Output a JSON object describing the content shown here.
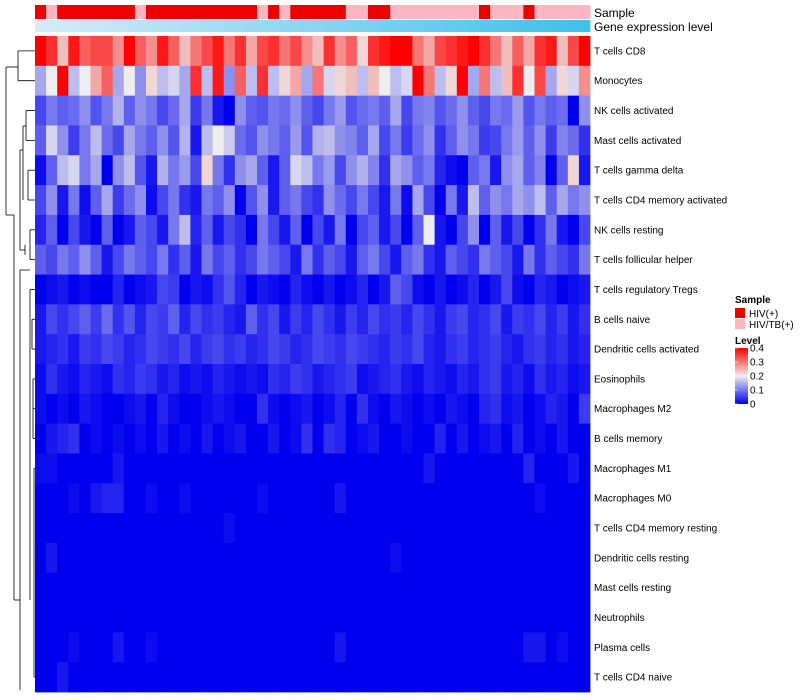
{
  "chart_data": {
    "type": "heatmap",
    "n_samples": 50,
    "annotation_rows": [
      "Sample",
      "Gene expression level"
    ],
    "sample_groups": [
      "HIV(+)",
      "HIV/TB(+)",
      "HIV(+)",
      "HIV(+)",
      "HIV(+)",
      "HIV(+)",
      "HIV(+)",
      "HIV(+)",
      "HIV(+)",
      "HIV/TB(+)",
      "HIV(+)",
      "HIV(+)",
      "HIV(+)",
      "HIV(+)",
      "HIV(+)",
      "HIV(+)",
      "HIV(+)",
      "HIV(+)",
      "HIV(+)",
      "HIV(+)",
      "HIV/TB(+)",
      "HIV(+)",
      "HIV/TB(+)",
      "HIV(+)",
      "HIV(+)",
      "HIV(+)",
      "HIV(+)",
      "HIV(+)",
      "HIV/TB(+)",
      "HIV/TB(+)",
      "HIV(+)",
      "HIV(+)",
      "HIV/TB(+)",
      "HIV/TB(+)",
      "HIV/TB(+)",
      "HIV/TB(+)",
      "HIV/TB(+)",
      "HIV/TB(+)",
      "HIV/TB(+)",
      "HIV/TB(+)",
      "HIV(+)",
      "HIV/TB(+)",
      "HIV/TB(+)",
      "HIV/TB(+)",
      "HIV(+)",
      "HIV/TB(+)",
      "HIV/TB(+)",
      "HIV/TB(+)",
      "HIV/TB(+)",
      "HIV/TB(+)"
    ],
    "row_labels": [
      "T cells CD8",
      "Monocytes",
      "NK cells activated",
      "Mast cells activated",
      "T cells gamma delta",
      "T cells CD4 memory activated",
      "NK cells resting",
      "T cells follicular helper",
      "T cells regulatory  Tregs",
      "B cells naive",
      "Dendritic cells activated",
      "Eosinophils",
      "Macrophages M2",
      "B cells memory",
      "Macrophages M1",
      "Macrophages M0",
      "T cells CD4 memory resting",
      "Dendritic cells resting",
      "Mast cells resting",
      "Neutrophils",
      "Plasma cells",
      "T cells CD4 naive"
    ],
    "values": [
      [
        0.4,
        0.36,
        0.24,
        0.38,
        0.32,
        0.34,
        0.34,
        0.28,
        0.4,
        0.32,
        0.28,
        0.38,
        0.32,
        0.24,
        0.3,
        0.34,
        0.38,
        0.3,
        0.36,
        0.26,
        0.34,
        0.36,
        0.3,
        0.34,
        0.28,
        0.24,
        0.36,
        0.28,
        0.32,
        0.22,
        0.36,
        0.38,
        0.4,
        0.4,
        0.3,
        0.26,
        0.34,
        0.36,
        0.38,
        0.4,
        0.36,
        0.3,
        0.24,
        0.32,
        0.26,
        0.36,
        0.38,
        0.24,
        0.34,
        0.4
      ],
      [
        0.14,
        0.2,
        0.4,
        0.16,
        0.2,
        0.26,
        0.32,
        0.14,
        0.2,
        0.12,
        0.22,
        0.16,
        0.18,
        0.14,
        0.36,
        0.16,
        0.38,
        0.12,
        0.32,
        0.16,
        0.36,
        0.16,
        0.22,
        0.26,
        0.14,
        0.3,
        0.18,
        0.22,
        0.24,
        0.16,
        0.24,
        0.2,
        0.16,
        0.18,
        0.4,
        0.3,
        0.16,
        0.22,
        0.4,
        0.14,
        0.3,
        0.16,
        0.24,
        0.36,
        0.2,
        0.34,
        0.14,
        0.22,
        0.18,
        0.28
      ],
      [
        0.06,
        0.1,
        0.08,
        0.09,
        0.12,
        0.07,
        0.1,
        0.15,
        0.08,
        0.12,
        0.1,
        0.06,
        0.09,
        0.14,
        0.05,
        0.1,
        0.02,
        0.0,
        0.12,
        0.08,
        0.07,
        0.1,
        0.09,
        0.12,
        0.08,
        0.06,
        0.1,
        0.13,
        0.07,
        0.09,
        0.1,
        0.08,
        0.14,
        0.06,
        0.1,
        0.11,
        0.07,
        0.09,
        0.12,
        0.08,
        0.06,
        0.1,
        0.09,
        0.13,
        0.07,
        0.1,
        0.08,
        0.09,
        0.0,
        0.12
      ],
      [
        0.08,
        0.18,
        0.12,
        0.05,
        0.1,
        0.16,
        0.09,
        0.06,
        0.14,
        0.1,
        0.08,
        0.12,
        0.07,
        0.15,
        0.02,
        0.16,
        0.2,
        0.17,
        0.09,
        0.07,
        0.12,
        0.1,
        0.08,
        0.13,
        0.07,
        0.15,
        0.16,
        0.12,
        0.11,
        0.08,
        0.14,
        0.06,
        0.1,
        0.05,
        0.09,
        0.12,
        0.04,
        0.08,
        0.12,
        0.1,
        0.05,
        0.06,
        0.1,
        0.13,
        0.08,
        0.12,
        0.05,
        0.11,
        0.09,
        0.04
      ],
      [
        0.01,
        0.08,
        0.16,
        0.18,
        0.1,
        0.14,
        0.0,
        0.12,
        0.16,
        0.07,
        0.02,
        0.15,
        0.1,
        0.13,
        0.06,
        0.22,
        0.1,
        0.04,
        0.12,
        0.14,
        0.08,
        0.02,
        0.08,
        0.18,
        0.16,
        0.1,
        0.13,
        0.06,
        0.12,
        0.15,
        0.11,
        0.04,
        0.14,
        0.12,
        0.08,
        0.1,
        0.03,
        0.01,
        0.0,
        0.08,
        0.1,
        0.02,
        0.12,
        0.14,
        0.08,
        0.11,
        0.0,
        0.08,
        0.22,
        0.02
      ],
      [
        0.06,
        0.12,
        0.02,
        0.1,
        0.01,
        0.08,
        0.14,
        0.05,
        0.09,
        0.12,
        0.01,
        0.06,
        0.1,
        0.04,
        0.02,
        0.1,
        0.08,
        0.12,
        0.0,
        0.07,
        0.12,
        0.02,
        0.08,
        0.1,
        0.06,
        0.04,
        0.12,
        0.09,
        0.06,
        0.1,
        0.06,
        0.02,
        0.1,
        0.01,
        0.14,
        0.06,
        0.0,
        0.1,
        0.02,
        0.16,
        0.08,
        0.12,
        0.1,
        0.14,
        0.12,
        0.16,
        0.08,
        0.14,
        0.1,
        0.12
      ],
      [
        0.03,
        0.08,
        0.0,
        0.06,
        0.02,
        0.0,
        0.08,
        0.0,
        0.02,
        0.08,
        0.06,
        0.02,
        0.1,
        0.16,
        0.03,
        0.08,
        0.02,
        0.06,
        0.04,
        0.0,
        0.1,
        0.06,
        0.02,
        0.08,
        0.0,
        0.06,
        0.02,
        0.1,
        0.0,
        0.06,
        0.08,
        0.02,
        0.06,
        0.0,
        0.08,
        0.2,
        0.02,
        0.0,
        0.06,
        0.12,
        0.0,
        0.08,
        0.02,
        0.06,
        0.0,
        0.04,
        0.1,
        0.02,
        0.0,
        0.06
      ],
      [
        0.08,
        0.06,
        0.1,
        0.08,
        0.12,
        0.08,
        0.02,
        0.06,
        0.1,
        0.08,
        0.06,
        0.1,
        0.04,
        0.08,
        0.02,
        0.1,
        0.06,
        0.08,
        0.04,
        0.06,
        0.1,
        0.08,
        0.06,
        0.02,
        0.1,
        0.04,
        0.08,
        0.06,
        0.02,
        0.08,
        0.1,
        0.06,
        0.02,
        0.08,
        0.1,
        0.04,
        0.02,
        0.08,
        0.06,
        0.04,
        0.1,
        0.08,
        0.06,
        0.02,
        0.1,
        0.04,
        0.08,
        0.06,
        0.04,
        0.1
      ],
      [
        0.0,
        0.01,
        0.02,
        0.0,
        0.01,
        0.0,
        0.0,
        0.03,
        0.0,
        0.01,
        0.02,
        0.06,
        0.05,
        0.0,
        0.02,
        0.01,
        0.04,
        0.07,
        0.03,
        0.0,
        0.02,
        0.01,
        0.0,
        0.03,
        0.01,
        0.0,
        0.02,
        0.0,
        0.01,
        0.03,
        0.0,
        0.02,
        0.08,
        0.06,
        0.01,
        0.0,
        0.02,
        0.0,
        0.01,
        0.03,
        0.0,
        0.02,
        0.06,
        0.01,
        0.0,
        0.03,
        0.02,
        0.0,
        0.01,
        0.02
      ],
      [
        0.02,
        0.06,
        0.04,
        0.06,
        0.08,
        0.05,
        0.09,
        0.04,
        0.07,
        0.03,
        0.06,
        0.05,
        0.08,
        0.03,
        0.06,
        0.04,
        0.05,
        0.03,
        0.02,
        0.08,
        0.04,
        0.06,
        0.02,
        0.05,
        0.03,
        0.06,
        0.04,
        0.02,
        0.05,
        0.03,
        0.06,
        0.04,
        0.05,
        0.03,
        0.06,
        0.04,
        0.02,
        0.05,
        0.06,
        0.03,
        0.04,
        0.06,
        0.02,
        0.05,
        0.04,
        0.06,
        0.03,
        0.05,
        0.02,
        0.04
      ],
      [
        0.02,
        0.03,
        0.04,
        0.02,
        0.05,
        0.04,
        0.06,
        0.05,
        0.03,
        0.04,
        0.06,
        0.05,
        0.04,
        0.06,
        0.03,
        0.05,
        0.06,
        0.04,
        0.05,
        0.03,
        0.04,
        0.06,
        0.05,
        0.03,
        0.04,
        0.06,
        0.05,
        0.04,
        0.06,
        0.05,
        0.04,
        0.03,
        0.05,
        0.04,
        0.06,
        0.03,
        0.02,
        0.04,
        0.05,
        0.03,
        0.04,
        0.05,
        0.03,
        0.02,
        0.04,
        0.05,
        0.03,
        0.04,
        0.02,
        0.03
      ],
      [
        0.01,
        0.04,
        0.02,
        0.01,
        0.03,
        0.02,
        0.01,
        0.04,
        0.03,
        0.05,
        0.04,
        0.02,
        0.03,
        0.01,
        0.02,
        0.01,
        0.03,
        0.02,
        0.01,
        0.02,
        0.01,
        0.04,
        0.03,
        0.05,
        0.04,
        0.02,
        0.03,
        0.04,
        0.05,
        0.01,
        0.02,
        0.03,
        0.04,
        0.02,
        0.01,
        0.03,
        0.02,
        0.01,
        0.03,
        0.02,
        0.04,
        0.05,
        0.02,
        0.03,
        0.01,
        0.04,
        0.02,
        0.03,
        0.01,
        0.02
      ],
      [
        0.01,
        0.0,
        0.01,
        0.0,
        0.02,
        0.01,
        0.0,
        0.0,
        0.01,
        0.02,
        0.0,
        0.03,
        0.01,
        0.0,
        0.0,
        0.01,
        0.02,
        0.01,
        0.0,
        0.0,
        0.04,
        0.01,
        0.0,
        0.01,
        0.02,
        0.0,
        0.01,
        0.03,
        0.0,
        0.04,
        0.01,
        0.0,
        0.02,
        0.01,
        0.0,
        0.01,
        0.0,
        0.02,
        0.01,
        0.0,
        0.03,
        0.04,
        0.01,
        0.02,
        0.0,
        0.01,
        0.03,
        0.02,
        0.0,
        0.05
      ],
      [
        0.0,
        0.02,
        0.03,
        0.04,
        0.0,
        0.01,
        0.0,
        0.01,
        0.0,
        0.01,
        0.0,
        0.02,
        0.0,
        0.01,
        0.0,
        0.02,
        0.0,
        0.01,
        0.02,
        0.0,
        0.0,
        0.02,
        0.0,
        0.01,
        0.04,
        0.0,
        0.04,
        0.03,
        0.0,
        0.01,
        0.02,
        0.0,
        0.0,
        0.01,
        0.0,
        0.0,
        0.03,
        0.0,
        0.02,
        0.0,
        0.01,
        0.02,
        0.0,
        0.03,
        0.0,
        0.01,
        0.0,
        0.02,
        0.0,
        0.0
      ],
      [
        0.01,
        0.01,
        0.0,
        0.0,
        0.0,
        0.0,
        0.0,
        0.02,
        0.0,
        0.0,
        0.0,
        0.0,
        0.0,
        0.0,
        0.0,
        0.0,
        0.0,
        0.0,
        0.0,
        0.0,
        0.0,
        0.0,
        0.0,
        0.0,
        0.0,
        0.0,
        0.0,
        0.0,
        0.0,
        0.0,
        0.0,
        0.0,
        0.0,
        0.0,
        0.0,
        0.02,
        0.0,
        0.0,
        0.0,
        0.0,
        0.0,
        0.0,
        0.0,
        0.0,
        0.03,
        0.0,
        0.0,
        0.0,
        0.02,
        0.0
      ],
      [
        0.0,
        0.0,
        0.0,
        0.01,
        0.0,
        0.02,
        0.03,
        0.03,
        0.0,
        0.0,
        0.01,
        0.0,
        0.0,
        0.01,
        0.0,
        0.0,
        0.0,
        0.0,
        0.0,
        0.0,
        0.01,
        0.0,
        0.0,
        0.0,
        0.0,
        0.0,
        0.0,
        0.02,
        0.0,
        0.0,
        0.0,
        0.0,
        0.0,
        0.0,
        0.0,
        0.0,
        0.0,
        0.0,
        0.0,
        0.0,
        0.0,
        0.0,
        0.0,
        0.0,
        0.0,
        0.01,
        0.0,
        0.0,
        0.0,
        0.0
      ],
      [
        0.0,
        0.0,
        0.0,
        0.0,
        0.0,
        0.0,
        0.0,
        0.0,
        0.0,
        0.0,
        0.0,
        0.0,
        0.0,
        0.0,
        0.0,
        0.0,
        0.0,
        0.01,
        0.0,
        0.0,
        0.0,
        0.0,
        0.0,
        0.0,
        0.0,
        0.0,
        0.0,
        0.0,
        0.0,
        0.0,
        0.0,
        0.0,
        0.0,
        0.0,
        0.0,
        0.0,
        0.0,
        0.0,
        0.0,
        0.0,
        0.0,
        0.0,
        0.0,
        0.0,
        0.0,
        0.0,
        0.0,
        0.0,
        0.0,
        0.0
      ],
      [
        0.0,
        0.02,
        0.0,
        0.0,
        0.0,
        0.0,
        0.0,
        0.0,
        0.0,
        0.0,
        0.0,
        0.0,
        0.0,
        0.0,
        0.0,
        0.0,
        0.0,
        0.0,
        0.0,
        0.0,
        0.0,
        0.0,
        0.0,
        0.0,
        0.0,
        0.0,
        0.0,
        0.0,
        0.0,
        0.0,
        0.0,
        0.0,
        0.01,
        0.0,
        0.0,
        0.0,
        0.0,
        0.0,
        0.0,
        0.0,
        0.0,
        0.0,
        0.0,
        0.0,
        0.0,
        0.0,
        0.0,
        0.0,
        0.0,
        0.0
      ],
      [
        0.0,
        0.0,
        0.0,
        0.0,
        0.0,
        0.0,
        0.0,
        0.0,
        0.0,
        0.0,
        0.0,
        0.0,
        0.0,
        0.0,
        0.0,
        0.0,
        0.0,
        0.0,
        0.0,
        0.0,
        0.0,
        0.0,
        0.0,
        0.0,
        0.0,
        0.0,
        0.0,
        0.0,
        0.0,
        0.0,
        0.0,
        0.0,
        0.0,
        0.0,
        0.0,
        0.0,
        0.0,
        0.0,
        0.0,
        0.0,
        0.0,
        0.0,
        0.0,
        0.0,
        0.0,
        0.0,
        0.0,
        0.0,
        0.0,
        0.0
      ],
      [
        0.0,
        0.0,
        0.0,
        0.0,
        0.0,
        0.0,
        0.0,
        0.0,
        0.0,
        0.0,
        0.0,
        0.0,
        0.0,
        0.0,
        0.0,
        0.0,
        0.0,
        0.0,
        0.0,
        0.0,
        0.0,
        0.0,
        0.0,
        0.0,
        0.0,
        0.0,
        0.0,
        0.0,
        0.0,
        0.0,
        0.0,
        0.0,
        0.0,
        0.0,
        0.0,
        0.0,
        0.0,
        0.0,
        0.0,
        0.0,
        0.0,
        0.0,
        0.0,
        0.0,
        0.0,
        0.0,
        0.0,
        0.0,
        0.0,
        0.0
      ],
      [
        0.0,
        0.0,
        0.0,
        0.01,
        0.0,
        0.0,
        0.0,
        0.02,
        0.0,
        0.0,
        0.01,
        0.0,
        0.0,
        0.0,
        0.0,
        0.0,
        0.0,
        0.0,
        0.0,
        0.0,
        0.0,
        0.0,
        0.0,
        0.0,
        0.0,
        0.0,
        0.0,
        0.02,
        0.0,
        0.0,
        0.0,
        0.0,
        0.0,
        0.0,
        0.0,
        0.0,
        0.0,
        0.0,
        0.0,
        0.0,
        0.0,
        0.0,
        0.0,
        0.0,
        0.02,
        0.02,
        0.0,
        0.01,
        0.0,
        0.0
      ],
      [
        0.0,
        0.0,
        0.02,
        0.0,
        0.0,
        0.0,
        0.0,
        0.0,
        0.0,
        0.0,
        0.0,
        0.0,
        0.0,
        0.0,
        0.0,
        0.0,
        0.0,
        0.0,
        0.0,
        0.0,
        0.0,
        0.0,
        0.0,
        0.0,
        0.0,
        0.0,
        0.0,
        0.0,
        0.0,
        0.0,
        0.0,
        0.0,
        0.0,
        0.0,
        0.0,
        0.0,
        0.0,
        0.0,
        0.0,
        0.0,
        0.0,
        0.0,
        0.0,
        0.0,
        0.0,
        0.0,
        0.0,
        0.0,
        0.0,
        0.0
      ]
    ],
    "color_range": [
      0,
      0.4
    ],
    "color_scale": {
      "low": "#0000ee",
      "mid": "#eeeeee",
      "high": "#ff0000"
    },
    "group_colors": {
      "HIV(+)": "#ee0000",
      "HIV/TB(+)": "#ffb6c1"
    },
    "expression_gradient": [
      "#d4ecf7",
      "#3fc1ea"
    ],
    "legend": {
      "sample_title": "Sample",
      "sample_items": [
        "HIV(+)",
        "HIV/TB(+)"
      ],
      "level_title": "Level",
      "level_ticks": [
        "0.4",
        "0.3",
        "0.2",
        "0.1",
        "0"
      ]
    }
  }
}
